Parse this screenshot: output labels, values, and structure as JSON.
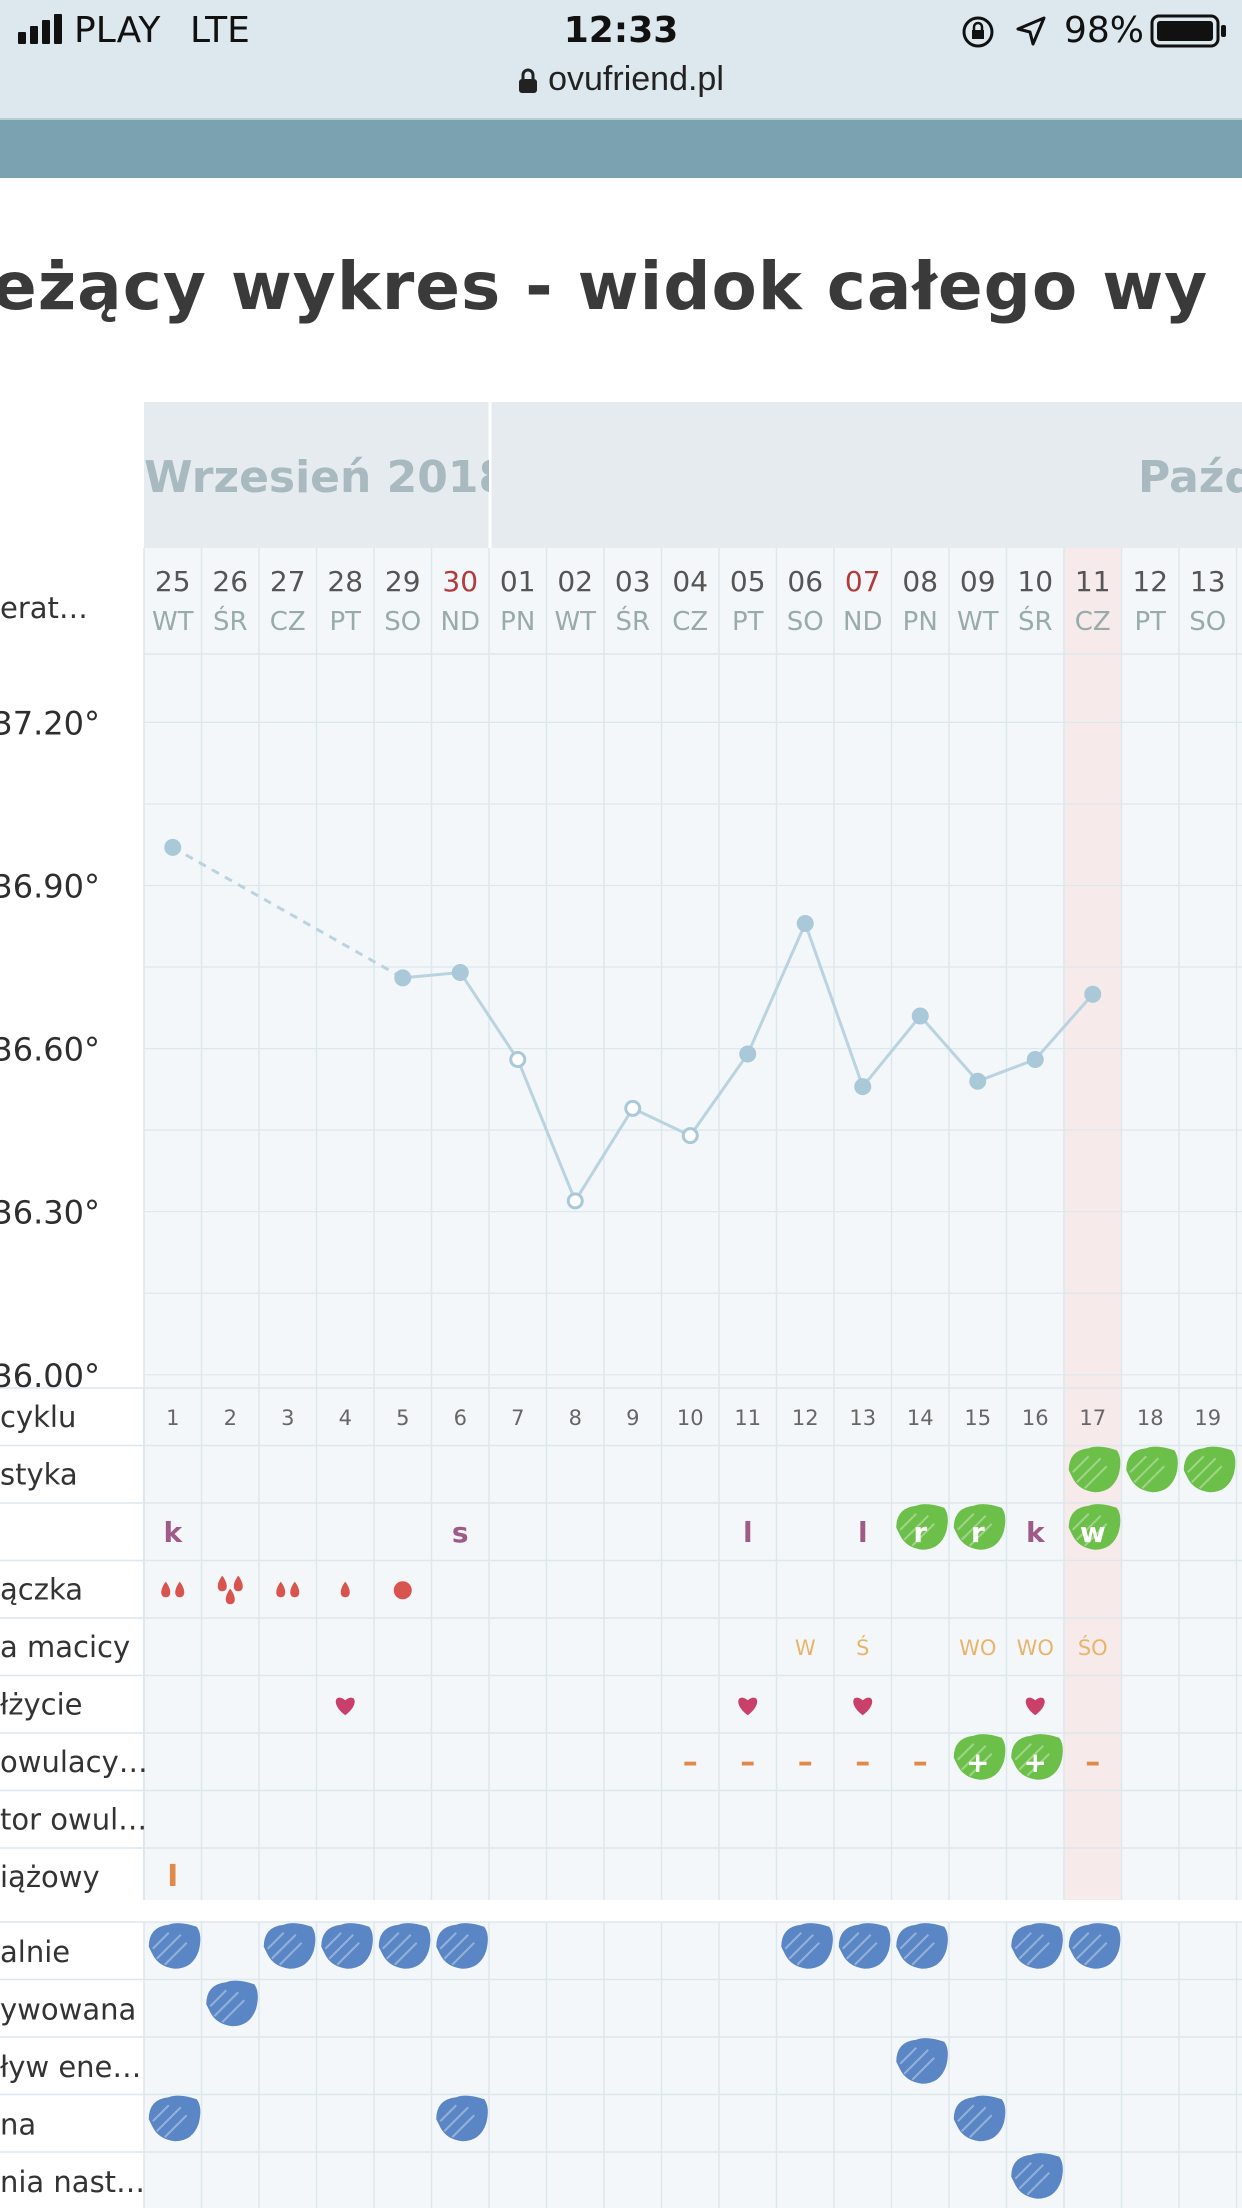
{
  "status_bar": {
    "carrier": "PLAY",
    "network": "LTE",
    "time": "12:33",
    "battery": "98%",
    "url": "ovufriend.pl"
  },
  "page": {
    "title": "eżący wykres - widok całego wy"
  },
  "colors": {
    "line": "#b9d3e0",
    "point": "#a9c8d8",
    "highlight_col": "#f6eaea",
    "grid": "#dde7ee",
    "plot_bg": "#f4f7f9",
    "header_bg": "#e5ebee",
    "blood": "#d9534f",
    "heart": "#c9416b",
    "green_blob": "#6cbf49",
    "blue_blob": "#5a86c5"
  },
  "chart_data": {
    "type": "line",
    "months": [
      "Wrzesień 2018",
      "Paźd"
    ],
    "dates": [
      {
        "day": "25",
        "dow": "WT",
        "red": false
      },
      {
        "day": "26",
        "dow": "ŚR",
        "red": false
      },
      {
        "day": "27",
        "dow": "CZ",
        "red": false
      },
      {
        "day": "28",
        "dow": "PT",
        "red": false
      },
      {
        "day": "29",
        "dow": "SO",
        "red": false
      },
      {
        "day": "30",
        "dow": "ND",
        "red": true
      },
      {
        "day": "01",
        "dow": "PN",
        "red": false
      },
      {
        "day": "02",
        "dow": "WT",
        "red": false
      },
      {
        "day": "03",
        "dow": "ŚR",
        "red": false
      },
      {
        "day": "04",
        "dow": "CZ",
        "red": false
      },
      {
        "day": "05",
        "dow": "PT",
        "red": false
      },
      {
        "day": "06",
        "dow": "SO",
        "red": false
      },
      {
        "day": "07",
        "dow": "ND",
        "red": true
      },
      {
        "day": "08",
        "dow": "PN",
        "red": false
      },
      {
        "day": "09",
        "dow": "WT",
        "red": false
      },
      {
        "day": "10",
        "dow": "ŚR",
        "red": false
      },
      {
        "day": "11",
        "dow": "CZ",
        "red": false
      },
      {
        "day": "12",
        "dow": "PT",
        "red": false
      },
      {
        "day": "13",
        "dow": "SO",
        "red": false
      }
    ],
    "highlight_index": 16,
    "ylabel": "erat…",
    "yticks": [
      "37.20°",
      "36.90°",
      "36.60°",
      "36.30°",
      "36.00°"
    ],
    "ytick_values": [
      37.2,
      36.9,
      36.6,
      36.3,
      36.0
    ],
    "ylim": [
      35.95,
      37.3
    ],
    "temperatures": [
      36.97,
      null,
      null,
      null,
      36.73,
      36.74,
      36.58,
      36.32,
      36.49,
      36.44,
      36.59,
      36.83,
      36.53,
      36.66,
      36.54,
      36.58,
      36.7,
      null,
      null
    ],
    "open_points": [
      6,
      7,
      8,
      9
    ],
    "dashed_segment": [
      0,
      4
    ],
    "grid": true,
    "cycle_days": [
      "1",
      "2",
      "3",
      "4",
      "5",
      "6",
      "7",
      "8",
      "9",
      "10",
      "11",
      "12",
      "13",
      "14",
      "15",
      "16",
      "17",
      "18",
      "19"
    ]
  },
  "rows": {
    "labels": [
      "cyklu",
      "styka",
      "",
      "ączka",
      "a macicy",
      "łżycie",
      "owulacy…",
      "tor owul…",
      "iążowy"
    ],
    "mucus": {
      "0": "k",
      "5": "s",
      "10": "l",
      "12": "l",
      "13": "r",
      "14": "r",
      "15": "k",
      "16": "w"
    },
    "mucus_green": [
      13,
      14,
      16
    ],
    "diagnostic_green": [
      16,
      17,
      18
    ],
    "bleeding": {
      "0": "drops2",
      "1": "drops3",
      "2": "drops2",
      "3": "drop1",
      "4": "spot"
    },
    "cervix": {
      "11": "W",
      "12": "Ś",
      "14": "WO",
      "15": "WO",
      "16": "ŚO"
    },
    "intercourse": [
      3,
      10,
      12,
      15
    ],
    "ovulation_test": {
      "9": "–",
      "10": "–",
      "11": "–",
      "12": "–",
      "13": "–",
      "14": "+",
      "15": "+",
      "16": "–"
    },
    "pregnancy_test": {
      "0": "I"
    }
  },
  "mood_rows": {
    "labels": [
      "alnie",
      "ywowana",
      "ływ ene…",
      "na",
      "nia nast…"
    ],
    "marks": [
      [
        0,
        2,
        3,
        4,
        5,
        11,
        12,
        13,
        15,
        16
      ],
      [
        1
      ],
      [
        13
      ],
      [
        0,
        5,
        14
      ],
      [
        15
      ]
    ]
  }
}
